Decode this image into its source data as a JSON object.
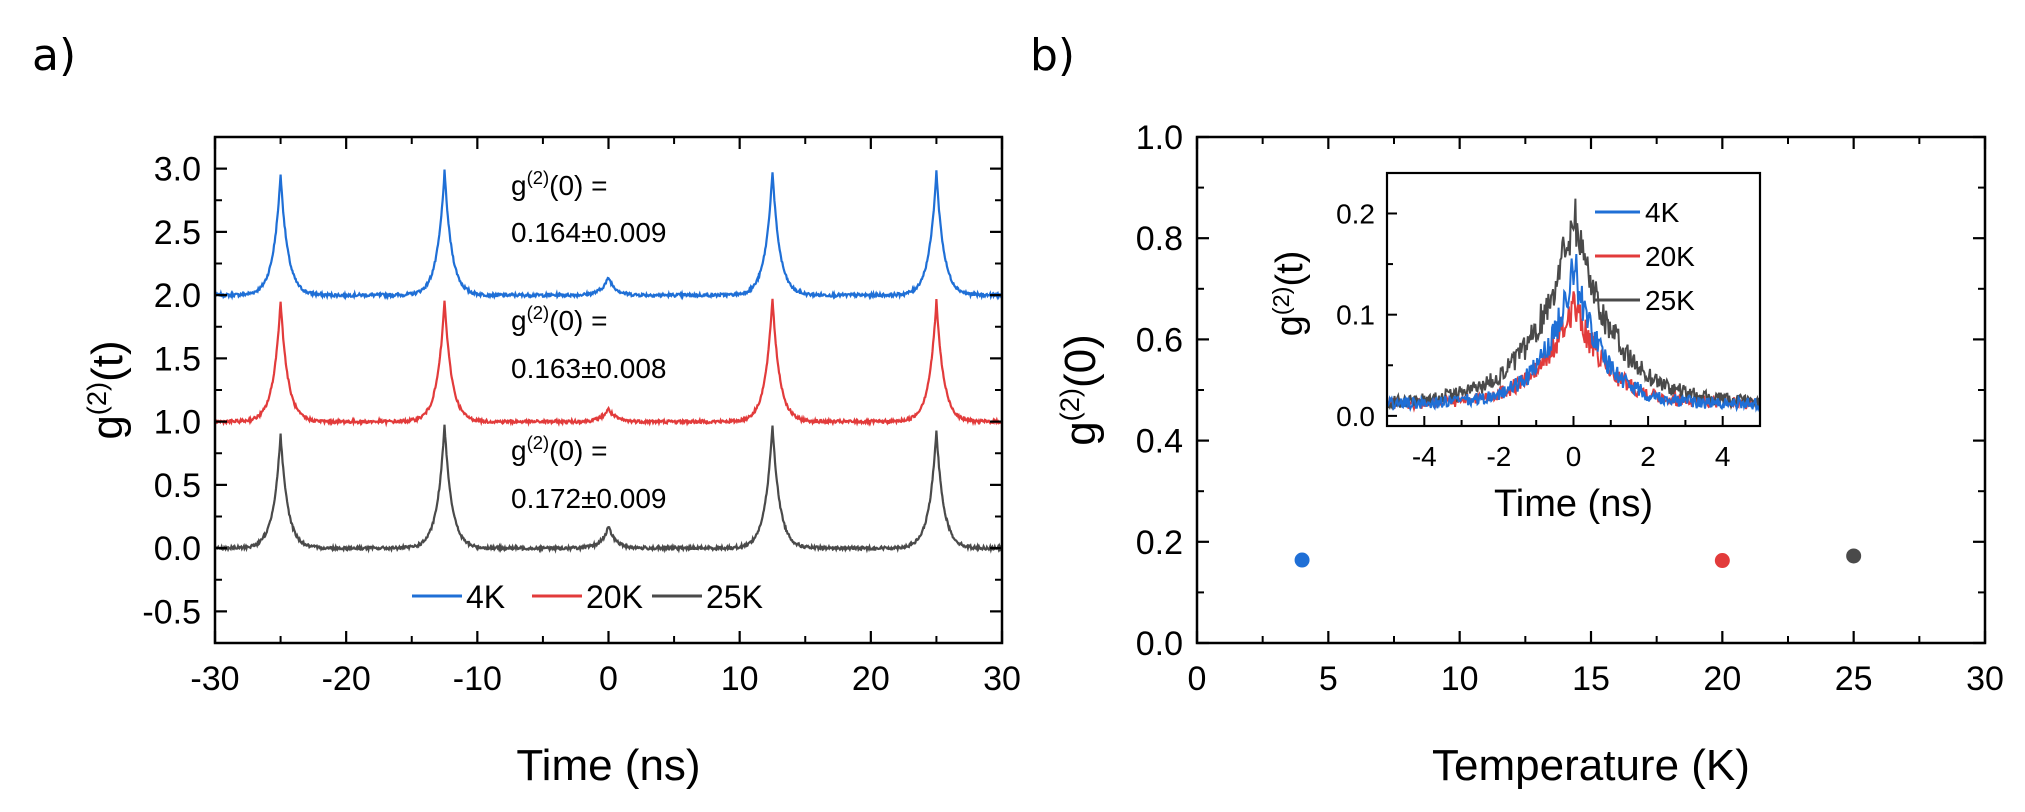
{
  "panel_a_label": "a)",
  "panel_b_label": "b)",
  "colors": {
    "4K": "#1f6fd6",
    "20K": "#e23b3b",
    "25K": "#4a4a4a",
    "axis": "#000000"
  },
  "chart_data": [
    {
      "id": "panel-a",
      "type": "line",
      "xlabel": "Time (ns)",
      "ylabel": "g(2)(t)",
      "ylabel_parts": {
        "base": "g",
        "sup": "(2)",
        "arg": "(t)"
      },
      "xlim": [
        -30,
        30
      ],
      "ylim": [
        -0.75,
        3.25
      ],
      "xticks": [
        -30,
        -20,
        -10,
        0,
        10,
        20,
        30
      ],
      "xtick_labels": [
        "-30",
        "-20",
        "-10",
        "0",
        "10",
        "20",
        "30"
      ],
      "yticks": [
        -0.5,
        0.0,
        0.5,
        1.0,
        1.5,
        2.0,
        2.5,
        3.0
      ],
      "ytick_labels": [
        "-0.5",
        "0.0",
        "0.5",
        "1.0",
        "1.5",
        "2.0",
        "2.5",
        "3.0"
      ],
      "peak_times_ns": [
        -25,
        -12.5,
        0,
        12.5,
        25
      ],
      "series": [
        {
          "name": "4K",
          "offset": 2.0,
          "peak_heights": [
            0.96,
            0.98,
            0.14,
            0.98,
            0.98
          ]
        },
        {
          "name": "20K",
          "offset": 1.0,
          "peak_heights": [
            0.96,
            0.96,
            0.1,
            0.98,
            0.96
          ]
        },
        {
          "name": "25K",
          "offset": 0.0,
          "peak_heights": [
            0.9,
            0.98,
            0.17,
            0.98,
            0.93
          ]
        }
      ],
      "legend": [
        "4K",
        "20K",
        "25K"
      ],
      "annotations": [
        {
          "series": "4K",
          "line1_base": "g",
          "line1_sup": "(2)",
          "line1_rest": "(0) =",
          "line2": "0.164±0.009"
        },
        {
          "series": "20K",
          "line1_base": "g",
          "line1_sup": "(2)",
          "line1_rest": "(0) =",
          "line2": "0.163±0.008"
        },
        {
          "series": "25K",
          "line1_base": "g",
          "line1_sup": "(2)",
          "line1_rest": "(0) =",
          "line2": "0.172±0.009"
        }
      ]
    },
    {
      "id": "panel-b",
      "type": "scatter",
      "xlabel": "Temperature (K)",
      "ylabel": "g(2)(0)",
      "ylabel_parts": {
        "base": "g",
        "sup": "(2)",
        "arg": "(0)"
      },
      "xlim": [
        0,
        30
      ],
      "ylim": [
        0.0,
        1.0
      ],
      "xticks": [
        0,
        5,
        10,
        15,
        20,
        25,
        30
      ],
      "xtick_labels": [
        "0",
        "5",
        "10",
        "15",
        "20",
        "25",
        "30"
      ],
      "yticks": [
        0.0,
        0.2,
        0.4,
        0.6,
        0.8,
        1.0
      ],
      "ytick_labels": [
        "0.0",
        "0.2",
        "0.4",
        "0.6",
        "0.8",
        "1.0"
      ],
      "points": [
        {
          "name": "4K",
          "x": 4,
          "y": 0.164
        },
        {
          "name": "20K",
          "x": 20,
          "y": 0.163
        },
        {
          "name": "25K",
          "x": 25,
          "y": 0.172
        }
      ]
    },
    {
      "id": "panel-b-inset",
      "type": "line",
      "xlabel": "Time (ns)",
      "ylabel": "g(2)(t)",
      "ylabel_parts": {
        "base": "g",
        "sup": "(2)",
        "arg": "(t)"
      },
      "xlim": [
        -5,
        5
      ],
      "ylim": [
        -0.01,
        0.24
      ],
      "xticks": [
        -4,
        -2,
        0,
        2,
        4
      ],
      "xtick_labels": [
        "-4",
        "-2",
        "0",
        "2",
        "4"
      ],
      "yticks": [
        0.0,
        0.1,
        0.2
      ],
      "ytick_labels": [
        "0.0",
        "0.1",
        "0.2"
      ],
      "series": [
        {
          "name": "4K",
          "peak": 0.14,
          "decay_ns": 0.75
        },
        {
          "name": "20K",
          "peak": 0.1,
          "decay_ns": 0.9
        },
        {
          "name": "25K",
          "peak": 0.19,
          "decay_ns": 1.05
        }
      ],
      "legend": [
        "4K",
        "20K",
        "25K"
      ]
    }
  ]
}
